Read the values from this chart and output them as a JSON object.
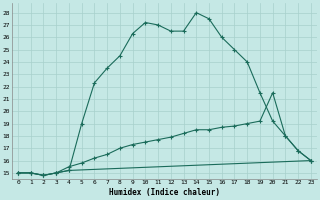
{
  "xlabel": "Humidex (Indice chaleur)",
  "bg_color": "#c5e8e5",
  "grid_color": "#a8d0cc",
  "line_color": "#1a6b5a",
  "xlim": [
    -0.5,
    23.5
  ],
  "ylim": [
    14.5,
    28.8
  ],
  "xticks": [
    0,
    1,
    2,
    3,
    4,
    5,
    6,
    7,
    8,
    9,
    10,
    11,
    12,
    13,
    14,
    15,
    16,
    17,
    18,
    19,
    20,
    21,
    22,
    23
  ],
  "yticks": [
    15,
    16,
    17,
    18,
    19,
    20,
    21,
    22,
    23,
    24,
    25,
    26,
    27,
    28
  ],
  "series1_x": [
    0,
    1,
    2,
    3,
    4,
    5,
    6,
    7,
    8,
    9,
    10,
    11,
    12,
    13,
    14,
    15,
    16,
    17,
    18,
    19,
    20,
    21,
    22,
    23
  ],
  "series1_y": [
    15.0,
    15.0,
    14.8,
    15.0,
    15.2,
    19.0,
    22.3,
    23.5,
    24.5,
    26.3,
    27.2,
    27.0,
    26.5,
    26.5,
    28.0,
    27.5,
    26.0,
    25.0,
    24.0,
    21.5,
    19.2,
    18.0,
    16.8,
    16.0
  ],
  "series2_x": [
    0,
    1,
    2,
    3,
    4,
    23
  ],
  "series2_y": [
    15.0,
    15.0,
    14.8,
    15.0,
    15.2,
    16.0
  ],
  "series3_x": [
    0,
    1,
    2,
    3,
    4,
    5,
    6,
    7,
    8,
    9,
    10,
    11,
    12,
    13,
    14,
    15,
    16,
    17,
    18,
    19,
    20,
    21,
    22,
    23
  ],
  "series3_y": [
    15.0,
    15.0,
    14.8,
    15.0,
    15.5,
    15.8,
    16.2,
    16.5,
    17.0,
    17.3,
    17.5,
    17.7,
    17.9,
    18.2,
    18.5,
    18.5,
    18.7,
    18.8,
    19.0,
    19.2,
    21.5,
    18.0,
    16.8,
    16.0
  ]
}
